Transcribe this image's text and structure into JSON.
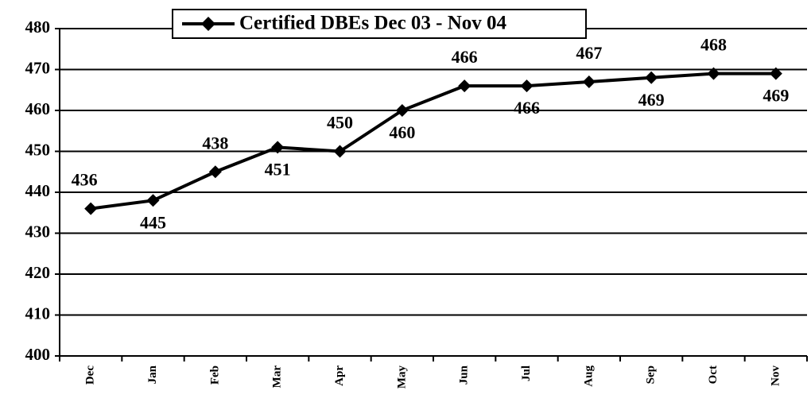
{
  "chart_data": {
    "type": "line",
    "title": "Certified DBEs Dec 03 - Nov 04",
    "categories": [
      "Dec",
      "Jan",
      "Feb",
      "Mar",
      "Apr",
      "May",
      "Jun",
      "Jul",
      "Aug",
      "Sep",
      "Oct",
      "Nov"
    ],
    "series": [
      {
        "name": "Certified DBEs Dec 03 - Nov 04",
        "color": "#000000",
        "values": [
          436,
          438,
          445,
          451,
          450,
          460,
          466,
          466,
          467,
          468,
          469,
          469
        ]
      }
    ],
    "annotations": [
      "436",
      "445",
      "438",
      "451",
      "450",
      "460",
      "466",
      "466",
      "467",
      "469",
      "468",
      "469"
    ],
    "ylim": [
      400,
      480
    ],
    "yticks": [
      400,
      410,
      420,
      430,
      440,
      450,
      460,
      470,
      480
    ],
    "grid": true,
    "legend": "top"
  }
}
